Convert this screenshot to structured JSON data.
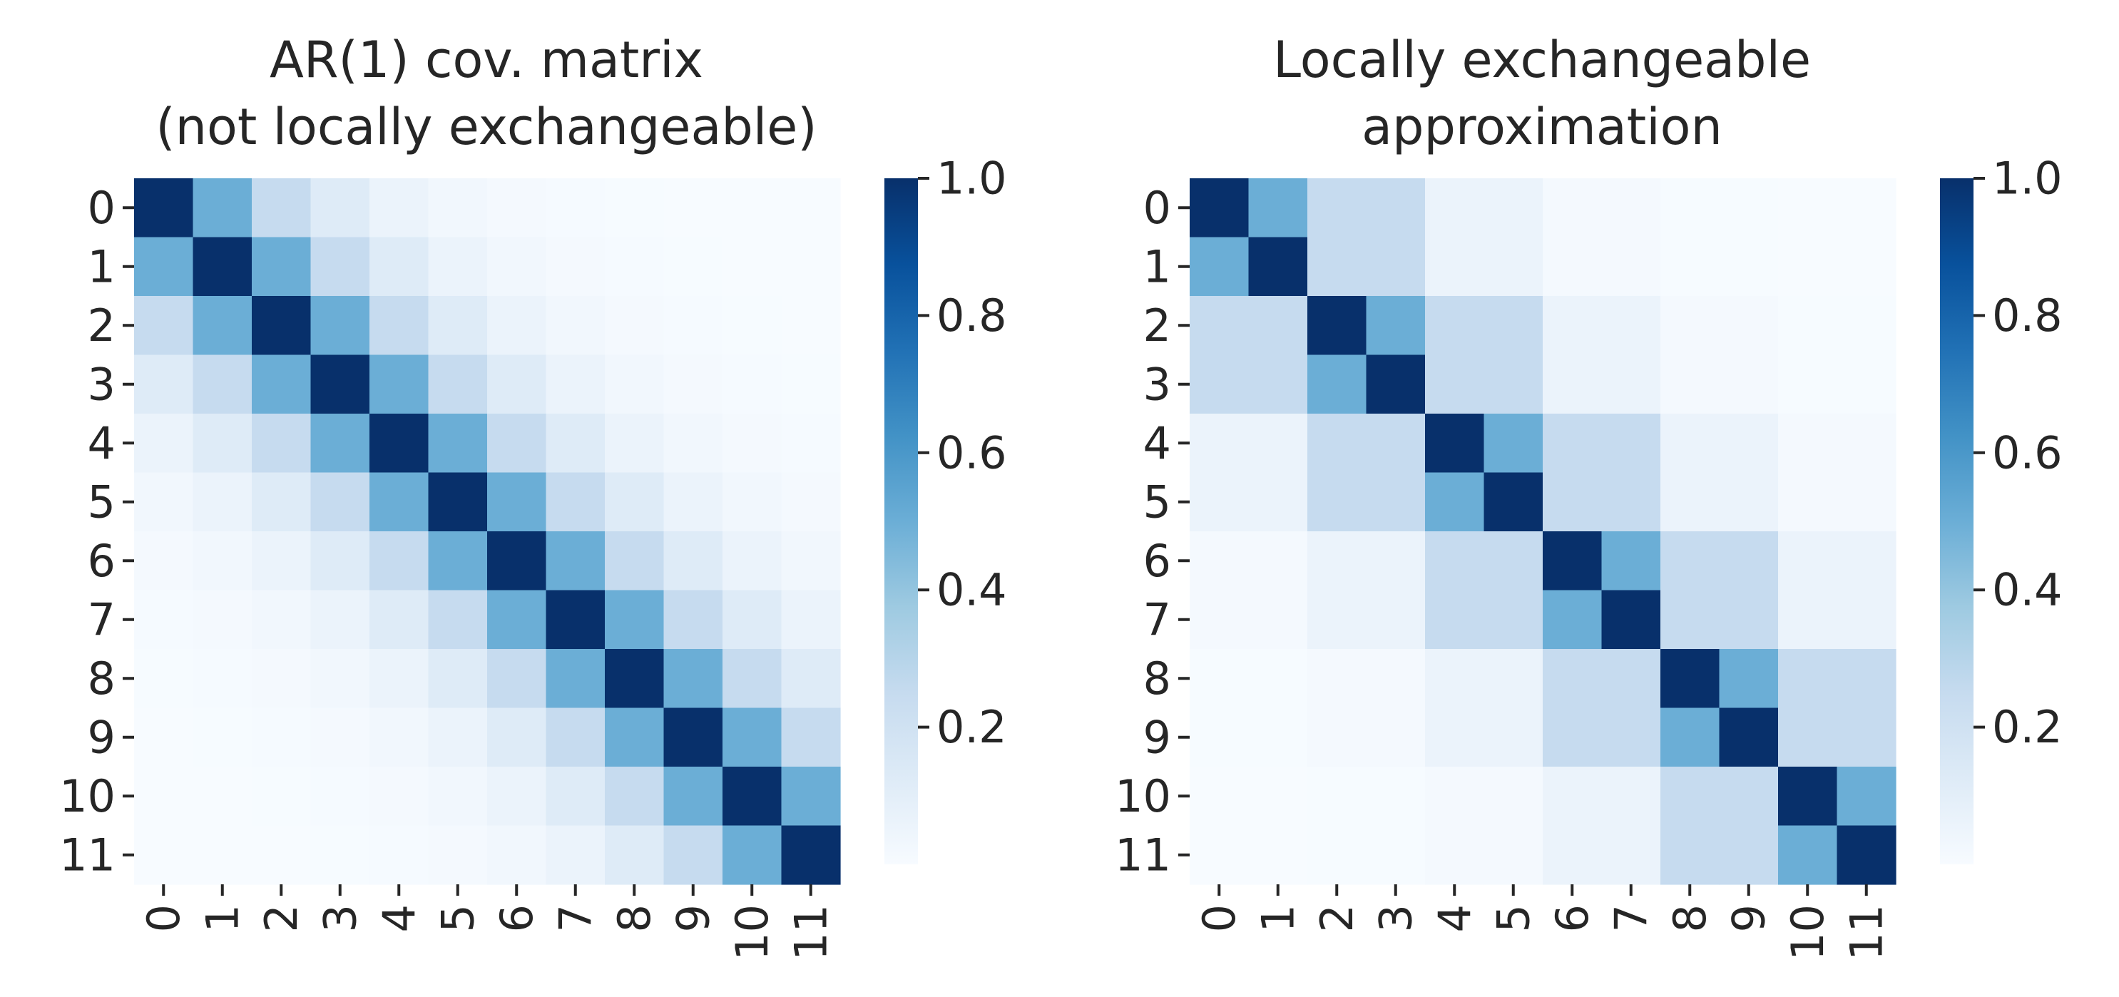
{
  "chart_data": [
    {
      "type": "heatmap",
      "title_lines": [
        "AR(1) cov. matrix",
        "(not locally exchangeable)"
      ],
      "row_labels": [
        "0",
        "1",
        "2",
        "3",
        "4",
        "5",
        "6",
        "7",
        "8",
        "9",
        "10",
        "11"
      ],
      "col_labels": [
        "0",
        "1",
        "2",
        "3",
        "4",
        "5",
        "6",
        "7",
        "8",
        "9",
        "10",
        "11"
      ],
      "rho": 0.5,
      "colormap": "Blues",
      "colorbar": {
        "vmin": 0.0,
        "vmax": 1.0,
        "ticks": [
          "0.2",
          "0.4",
          "0.6",
          "0.8",
          "1.0"
        ]
      }
    },
    {
      "type": "heatmap",
      "title_lines": [
        "Locally exchangeable",
        "approximation"
      ],
      "row_labels": [
        "0",
        "1",
        "2",
        "3",
        "4",
        "5",
        "6",
        "7",
        "8",
        "9",
        "10",
        "11"
      ],
      "col_labels": [
        "0",
        "1",
        "2",
        "3",
        "4",
        "5",
        "6",
        "7",
        "8",
        "9",
        "10",
        "11"
      ],
      "rho": 0.5,
      "block_size": 2,
      "colormap": "Blues",
      "colorbar": {
        "vmin": 0.0,
        "vmax": 1.0,
        "ticks": [
          "0.2",
          "0.4",
          "0.6",
          "0.8",
          "1.0"
        ]
      }
    }
  ]
}
